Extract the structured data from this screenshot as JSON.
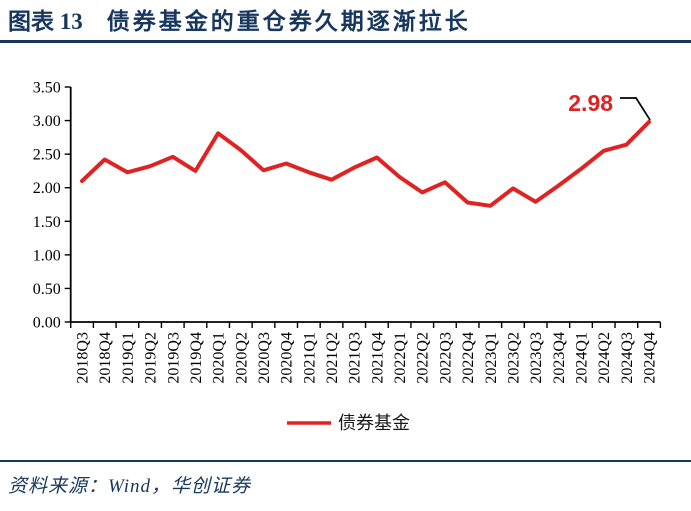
{
  "header": {
    "figure_label": "图表 13",
    "title": "债券基金的重仓券久期逐渐拉长"
  },
  "footer": {
    "source_text": "资料来源：Wind，华创证券"
  },
  "colors": {
    "accent_navy": "#17375E",
    "line_red": "#E02222",
    "axis_black": "#000000"
  },
  "chart_data": {
    "type": "line",
    "title": "债券基金的重仓券久期逐渐拉长",
    "categories": [
      "2018Q3",
      "2018Q4",
      "2019Q1",
      "2019Q2",
      "2019Q3",
      "2019Q4",
      "2020Q1",
      "2020Q2",
      "2020Q3",
      "2020Q4",
      "2021Q1",
      "2021Q2",
      "2021Q3",
      "2021Q4",
      "2022Q1",
      "2022Q2",
      "2022Q3",
      "2022Q4",
      "2023Q1",
      "2023Q2",
      "2023Q3",
      "2023Q4",
      "2024Q1",
      "2024Q2",
      "2024Q3",
      "2024Q4"
    ],
    "series": [
      {
        "name": "债券基金",
        "color": "#E02222",
        "values": [
          2.1,
          2.42,
          2.23,
          2.32,
          2.46,
          2.25,
          2.81,
          2.56,
          2.26,
          2.36,
          2.23,
          2.12,
          2.3,
          2.45,
          2.16,
          1.93,
          2.08,
          1.78,
          1.73,
          1.99,
          1.79,
          2.03,
          2.28,
          2.55,
          2.64,
          2.98
        ]
      }
    ],
    "xlabel": "",
    "ylabel": "",
    "ylim": [
      0,
      3.5
    ],
    "ytick_step": 0.5,
    "ytick_labels": [
      "0.00",
      "0.50",
      "1.00",
      "1.50",
      "2.00",
      "2.50",
      "3.00",
      "3.50"
    ],
    "grid": false,
    "legend": {
      "position": "bottom",
      "entries": [
        "债券基金"
      ]
    },
    "annotation": {
      "text": "2.98",
      "target_index": 25,
      "color": "#E02222"
    }
  }
}
